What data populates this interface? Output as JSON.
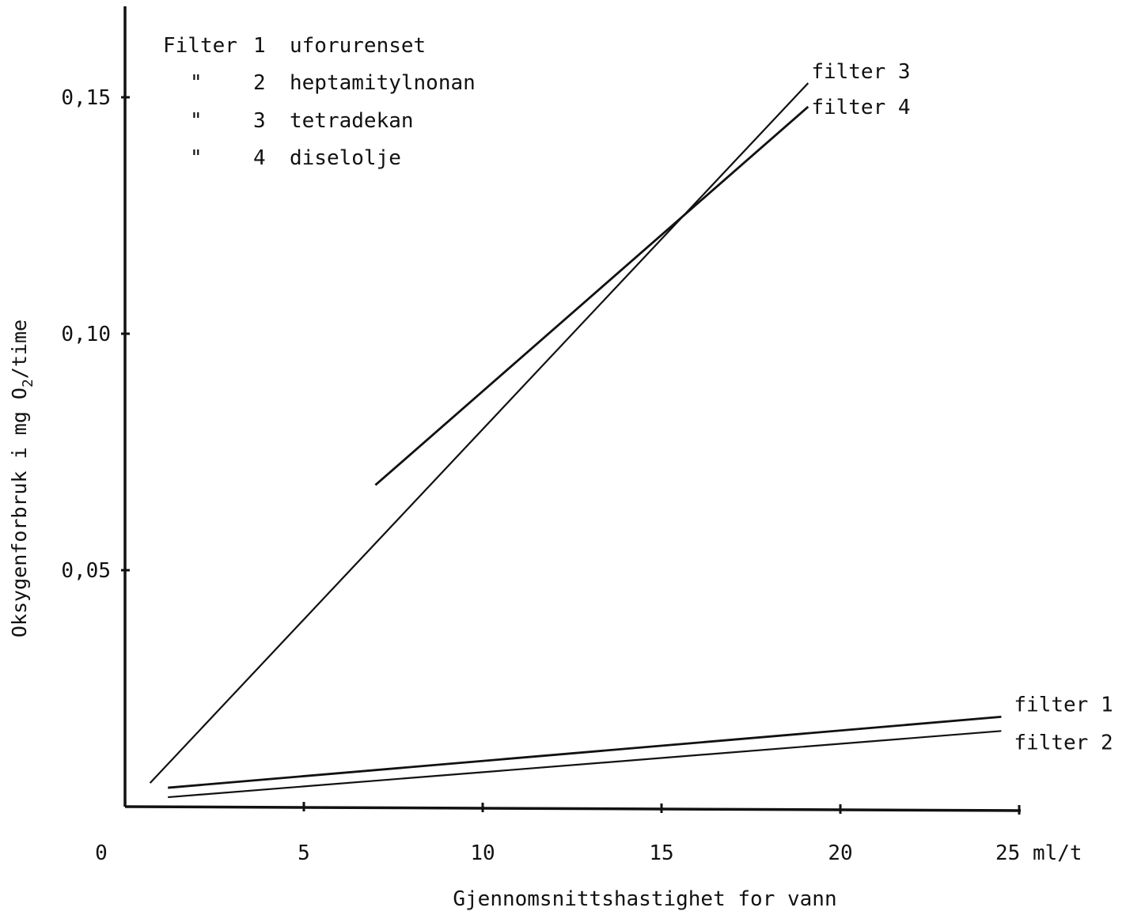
{
  "chart_data": {
    "type": "line",
    "title": "",
    "xlabel": "Gjennomsnittshastighet for vann",
    "ylabel_parts": [
      "Oksygenforbruk i mg O",
      "2",
      "/time"
    ],
    "xlim": [
      0,
      25
    ],
    "ylim": [
      0,
      0.15
    ],
    "x_ticks": [
      5,
      10,
      15,
      20,
      25
    ],
    "x_tick_labels": [
      "5",
      "10",
      "15",
      "20",
      "25 ml/t"
    ],
    "x_origin_label": "0",
    "y_ticks": [
      0.05,
      0.1,
      0.15
    ],
    "y_tick_labels": [
      "0,05",
      "0,10",
      "0,15"
    ],
    "grid": false,
    "legend": {
      "position": "top-left",
      "rows": [
        {
          "mark": "Filter",
          "num": "1",
          "name": "uforurenset"
        },
        {
          "mark": "\"",
          "num": "2",
          "name": "heptamitylnonan"
        },
        {
          "mark": "\"",
          "num": "3",
          "name": "tetradekan"
        },
        {
          "mark": "\"",
          "num": "4",
          "name": "diselolje"
        }
      ]
    },
    "series": [
      {
        "name": "filter 1",
        "x": [
          1.2,
          24.5
        ],
        "y": [
          0.004,
          0.019
        ]
      },
      {
        "name": "filter 2",
        "x": [
          1.2,
          24.5
        ],
        "y": [
          0.002,
          0.016
        ]
      },
      {
        "name": "filter 3",
        "x": [
          0.7,
          19.1
        ],
        "y": [
          0.005,
          0.153
        ]
      },
      {
        "name": "filter 4",
        "x": [
          7.0,
          19.1
        ],
        "y": [
          0.068,
          0.148
        ]
      }
    ]
  }
}
